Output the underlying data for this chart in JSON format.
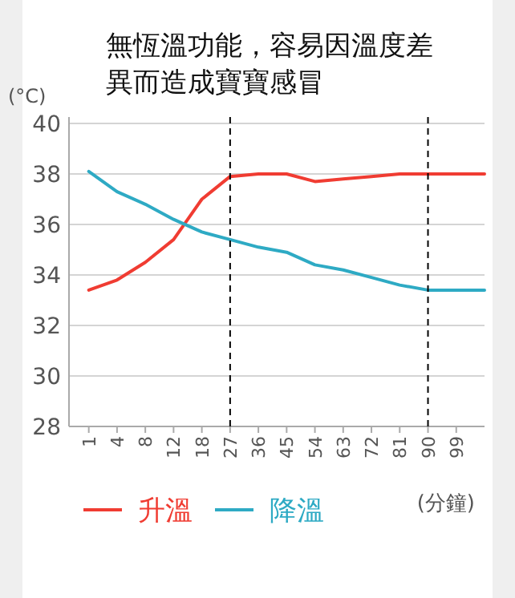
{
  "chart_data": {
    "type": "line",
    "title": "無恆溫功能，容易因溫度差異而造成寶寶感冒",
    "ylabel": "(°C)",
    "xlabel": "(分鐘)",
    "categories": [
      "1",
      "4",
      "8",
      "12",
      "18",
      "27",
      "36",
      "45",
      "54",
      "63",
      "72",
      "81",
      "90",
      "99",
      null
    ],
    "series": [
      {
        "name": "升溫",
        "color": "#f03c32",
        "values": [
          33.4,
          33.8,
          34.5,
          35.4,
          37.0,
          37.9,
          38.0,
          38.0,
          37.7,
          37.8,
          37.9,
          38.0,
          38.0,
          38.0,
          38.0
        ]
      },
      {
        "name": "降溫",
        "color": "#2eaac4",
        "values": [
          38.1,
          37.3,
          36.8,
          36.2,
          35.7,
          35.4,
          35.1,
          34.9,
          34.4,
          34.2,
          33.9,
          33.6,
          33.4,
          33.4,
          33.4
        ]
      }
    ],
    "ylim": [
      28,
      40
    ],
    "yticks": [
      28,
      30,
      32,
      34,
      36,
      38,
      40
    ],
    "grid": "y",
    "legend": "bottom",
    "ref_lines": [
      {
        "axis": "x",
        "value": "27",
        "line_style": "dashed",
        "color": "#000000"
      },
      {
        "axis": "x",
        "value": "90",
        "line_style": "dashed",
        "color": "#000000"
      }
    ]
  }
}
